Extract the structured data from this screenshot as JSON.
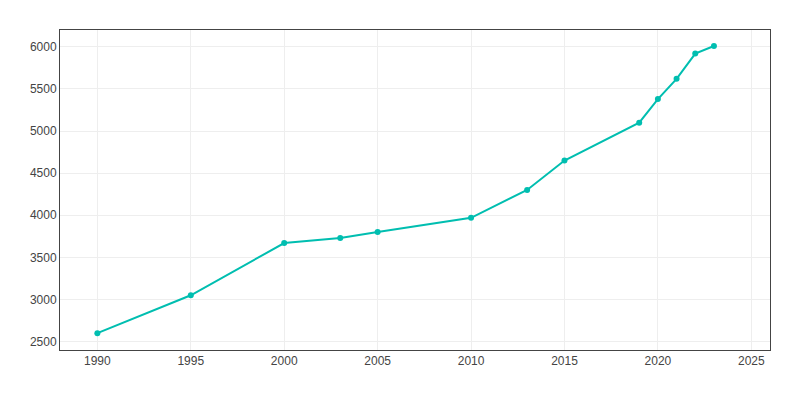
{
  "chart_data": {
    "type": "line",
    "x": [
      1990,
      1995,
      2000,
      2003,
      2005,
      2010,
      2013,
      2015,
      2019,
      2020,
      2021,
      2022,
      2023
    ],
    "values": [
      2600,
      3050,
      3670,
      3730,
      3800,
      3970,
      4300,
      4650,
      5100,
      5380,
      5620,
      5920,
      6010
    ],
    "color": "#00BEB0",
    "marker": "circle",
    "xlim": [
      1988,
      2026
    ],
    "ylim": [
      2400,
      6200
    ],
    "xticks": [
      1990,
      1995,
      2000,
      2005,
      2010,
      2015,
      2020,
      2025
    ],
    "yticks": [
      2500,
      3000,
      3500,
      4000,
      4500,
      5000,
      5500,
      6000
    ],
    "grid": true
  }
}
